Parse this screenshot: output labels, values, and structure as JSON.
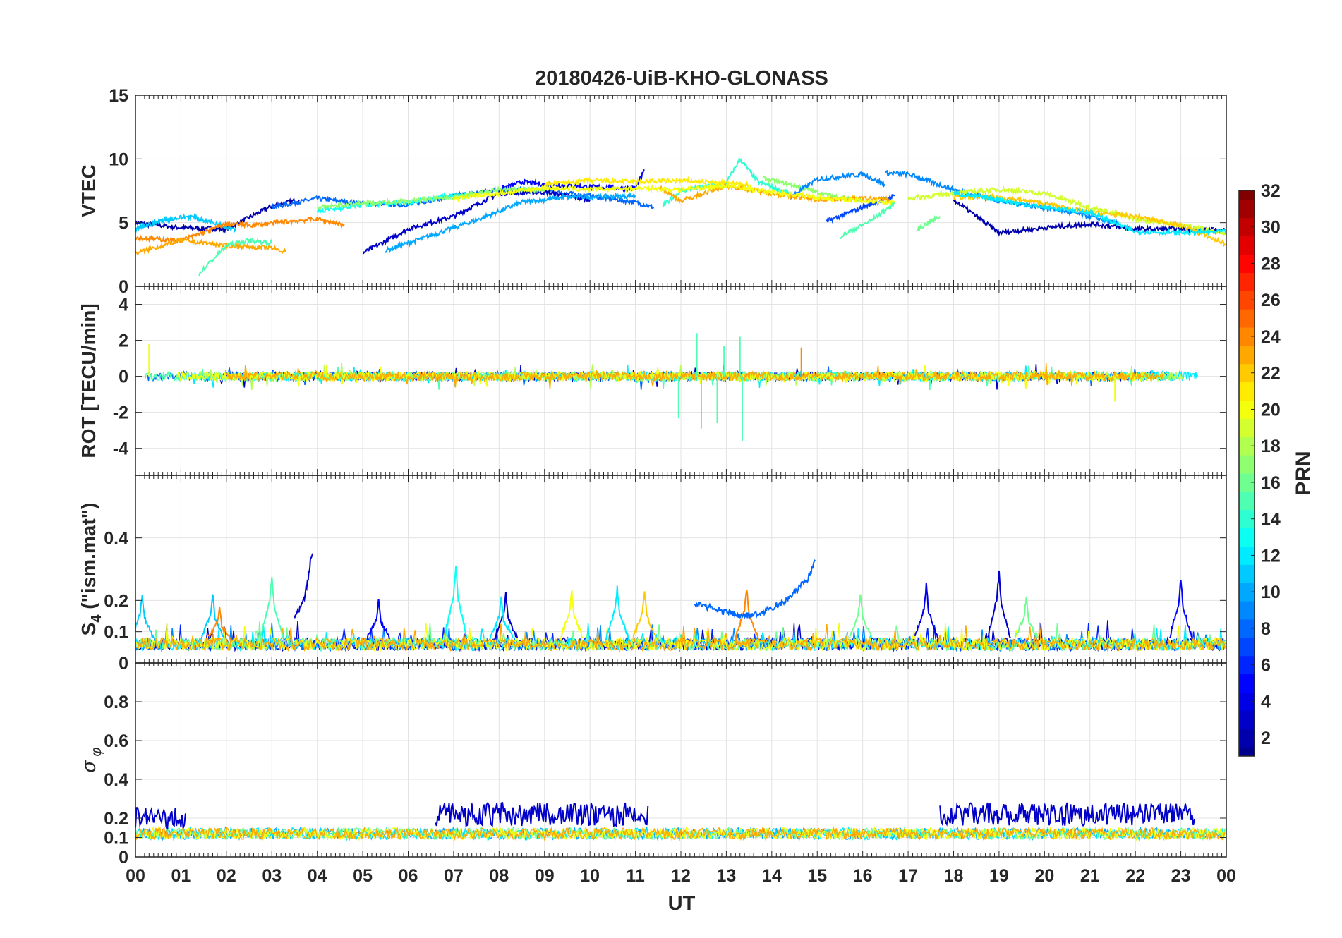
{
  "chart_data": {
    "type": "line",
    "title": "20180426-UiB-KHO-GLONASS",
    "xlabel": "UT",
    "xlim": [
      0,
      24
    ],
    "x_ticks": [
      "00",
      "01",
      "02",
      "03",
      "04",
      "05",
      "06",
      "07",
      "08",
      "09",
      "10",
      "11",
      "12",
      "13",
      "14",
      "15",
      "16",
      "17",
      "18",
      "19",
      "20",
      "21",
      "22",
      "23",
      "00"
    ],
    "grid": true,
    "colorbar": {
      "label": "PRN",
      "range": [
        1,
        32
      ],
      "ticks": [
        "2",
        "4",
        "6",
        "8",
        "10",
        "12",
        "14",
        "16",
        "18",
        "20",
        "22",
        "24",
        "26",
        "28",
        "30",
        "32"
      ],
      "colormap": [
        "#00008f",
        "#0000ff",
        "#0080ff",
        "#00ffff",
        "#80ff80",
        "#ffff00",
        "#ff8000",
        "#ff0000",
        "#800000"
      ]
    },
    "panels": [
      {
        "id": "vtec",
        "ylabel": "VTEC",
        "ylim": [
          0,
          15
        ],
        "y_ticks": [
          "0",
          "5",
          "10",
          "15"
        ],
        "series": [
          {
            "prn": 2,
            "x": [
              0,
              1,
              2,
              3,
              3.6
            ],
            "y": [
              5.0,
              4.6,
              4.5,
              6.3,
              6.8
            ]
          },
          {
            "prn": 8,
            "x": [
              3,
              4,
              5,
              6,
              7,
              8,
              9,
              10,
              11,
              11.4
            ],
            "y": [
              6.2,
              6.9,
              6.5,
              6.4,
              7.1,
              7.6,
              7.5,
              7.1,
              6.6,
              6.2
            ]
          },
          {
            "prn": 3,
            "x": [
              5,
              6,
              7,
              8,
              9,
              10
            ],
            "y": [
              2.6,
              4.5,
              5.5,
              7.3,
              7.4,
              6.8
            ]
          },
          {
            "prn": 10,
            "x": [
              5.5,
              6.5,
              7.5,
              8.5,
              9.5,
              11
            ],
            "y": [
              2.8,
              4.0,
              5.2,
              6.6,
              7.0,
              7.1
            ]
          },
          {
            "prn": 5,
            "x": [
              8,
              8.5,
              9,
              10,
              11,
              11.2
            ],
            "y": [
              7.6,
              8.2,
              8.0,
              7.8,
              7.7,
              9.1
            ]
          },
          {
            "prn": 14,
            "x": [
              11.6,
              12,
              13,
              13.3,
              13.7,
              14.4
            ],
            "y": [
              6.3,
              7.5,
              8.1,
              10.0,
              8.2,
              7.3
            ]
          },
          {
            "prn": 17,
            "x": [
              13.8,
              14.5,
              15.2,
              16
            ],
            "y": [
              8.5,
              7.9,
              7.2,
              6.7
            ]
          },
          {
            "prn": 7,
            "x": [
              15.2,
              16,
              16.7
            ],
            "y": [
              5.1,
              6.2,
              7.1
            ]
          },
          {
            "prn": 9,
            "x": [
              14.4,
              15,
              16,
              16.5
            ],
            "y": [
              7.0,
              8.4,
              8.8,
              8.0
            ]
          },
          {
            "prn": 9,
            "x": [
              16.5,
              17,
              18,
              19,
              20,
              21,
              21.6
            ],
            "y": [
              8.9,
              8.8,
              7.6,
              6.7,
              6.2,
              5.5,
              4.9
            ]
          },
          {
            "prn": 2,
            "x": [
              18,
              19,
              20,
              21,
              22,
              23,
              24
            ],
            "y": [
              6.8,
              4.2,
              4.6,
              4.9,
              4.5,
              4.5,
              4.4
            ]
          },
          {
            "prn": 15,
            "x": [
              15.5,
              16.2,
              16.7
            ],
            "y": [
              3.9,
              5.2,
              6.5
            ]
          },
          {
            "prn": 16,
            "x": [
              17.2,
              17.7
            ],
            "y": [
              4.5,
              5.5
            ]
          },
          {
            "prn": 19,
            "x": [
              17,
              18,
              19,
              20,
              21,
              22,
              23,
              24
            ],
            "y": [
              6.9,
              7.3,
              7.6,
              7.3,
              6.2,
              5.3,
              4.8,
              4.2
            ]
          },
          {
            "prn": 22,
            "x": [
              18,
              19,
              20,
              21,
              22,
              23,
              24
            ],
            "y": [
              7.0,
              7.0,
              6.5,
              5.8,
              5.5,
              4.8,
              3.3
            ]
          },
          {
            "prn": 12,
            "x": [
              18,
              19,
              20,
              21,
              22,
              23,
              24
            ],
            "y": [
              7.3,
              6.8,
              6.2,
              5.8,
              4.3,
              4.2,
              4.3
            ]
          },
          {
            "prn": 11,
            "x": [
              0,
              0.6,
              1.2,
              1.7,
              2.2
            ],
            "y": [
              4.5,
              5.2,
              5.5,
              5.0,
              4.5
            ]
          },
          {
            "prn": 24,
            "x": [
              0,
              1,
              2,
              2.6,
              3.4,
              4,
              4.6
            ],
            "y": [
              3.8,
              3.6,
              4.9,
              4.8,
              5.1,
              5.3,
              4.8
            ]
          },
          {
            "prn": 23,
            "x": [
              0,
              1,
              2,
              3,
              3.3
            ],
            "y": [
              2.6,
              3.6,
              3.2,
              3.0,
              2.7
            ]
          },
          {
            "prn": 15,
            "x": [
              1.4,
              2,
              2.5,
              3
            ],
            "y": [
              1.0,
              3.2,
              3.6,
              3.4
            ]
          },
          {
            "prn": 13,
            "x": [
              4,
              5,
              6,
              7,
              7.5
            ],
            "y": [
              5.9,
              6.4,
              6.6,
              7.2,
              7.1
            ]
          },
          {
            "prn": 17,
            "x": [
              4,
              5,
              6,
              7,
              8,
              9
            ],
            "y": [
              6.2,
              6.5,
              6.7,
              7.0,
              7.6,
              7.6
            ]
          },
          {
            "prn": 21,
            "x": [
              9,
              10,
              11,
              12,
              13,
              13.5
            ],
            "y": [
              8.0,
              8.3,
              8.2,
              8.3,
              8.1,
              8.0
            ]
          },
          {
            "prn": 23,
            "x": [
              11.5,
              12,
              13,
              14,
              15,
              16,
              16.6
            ],
            "y": [
              7.8,
              6.7,
              7.9,
              7.3,
              6.8,
              6.9,
              6.8
            ]
          },
          {
            "prn": 20,
            "x": [
              7,
              8,
              9,
              10,
              11,
              12,
              13,
              14,
              15,
              16,
              16.7
            ],
            "y": [
              6.9,
              7.3,
              7.7,
              7.6,
              7.7,
              7.6,
              7.9,
              7.4,
              7.0,
              6.7,
              6.6
            ]
          }
        ]
      },
      {
        "id": "rot",
        "ylabel": "ROT [TECU/min]",
        "ylim": [
          -5.5,
          5
        ],
        "y_ticks": [
          "-4",
          "-2",
          "0",
          "2",
          "4"
        ],
        "spikes": [
          {
            "prn": 15,
            "x": 11.95,
            "y": -2.3
          },
          {
            "prn": 15,
            "x": 12.35,
            "y": 2.4
          },
          {
            "prn": 15,
            "x": 12.45,
            "y": -2.9
          },
          {
            "prn": 15,
            "x": 12.8,
            "y": -2.6
          },
          {
            "prn": 15,
            "x": 12.95,
            "y": 1.7
          },
          {
            "prn": 15,
            "x": 13.3,
            "y": 2.2
          },
          {
            "prn": 15,
            "x": 13.35,
            "y": -3.6
          },
          {
            "prn": 24,
            "x": 14.65,
            "y": 1.6
          },
          {
            "prn": 20,
            "x": 0.3,
            "y": 1.8
          },
          {
            "prn": 20,
            "x": 21.55,
            "y": -1.4
          }
        ]
      },
      {
        "id": "s4",
        "ylabel": "S4 (\"ism.mat\")",
        "ylabel_main": "S",
        "ylabel_sub": "4",
        "ylabel_rest": " (\"ism.mat\")",
        "ylim": [
          0,
          0.6
        ],
        "y_ticks": [
          "0",
          "0.1",
          "0.2",
          "0.4"
        ],
        "series": [
          {
            "prn": 3,
            "x": [
              3.5,
              3.7,
              3.8,
              3.85,
              3.9
            ],
            "y": [
              0.14,
              0.2,
              0.27,
              0.33,
              0.35
            ]
          },
          {
            "prn": 8,
            "x": [
              12.3,
              12.8,
              13.3,
              13.8,
              14.3,
              14.8,
              14.95
            ],
            "y": [
              0.19,
              0.17,
              0.15,
              0.16,
              0.2,
              0.27,
              0.33
            ]
          }
        ],
        "peaks": [
          {
            "prn": 15,
            "x": 3.0,
            "y": 0.28
          },
          {
            "prn": 13,
            "x": 7.05,
            "y": 0.31
          },
          {
            "prn": 3,
            "x": 8.15,
            "y": 0.22
          },
          {
            "prn": 12,
            "x": 8.05,
            "y": 0.21
          },
          {
            "prn": 20,
            "x": 9.6,
            "y": 0.23
          },
          {
            "prn": 22,
            "x": 11.2,
            "y": 0.23
          },
          {
            "prn": 24,
            "x": 13.45,
            "y": 0.24
          },
          {
            "prn": 16,
            "x": 15.95,
            "y": 0.22
          },
          {
            "prn": 4,
            "x": 17.4,
            "y": 0.25
          },
          {
            "prn": 3,
            "x": 19.0,
            "y": 0.29
          },
          {
            "prn": 16,
            "x": 19.6,
            "y": 0.21
          },
          {
            "prn": 5,
            "x": 23.0,
            "y": 0.27
          },
          {
            "prn": 11,
            "x": 0.15,
            "y": 0.22
          },
          {
            "prn": 11,
            "x": 1.7,
            "y": 0.22
          },
          {
            "prn": 24,
            "x": 1.85,
            "y": 0.18
          },
          {
            "prn": 5,
            "x": 5.35,
            "y": 0.2
          },
          {
            "prn": 12,
            "x": 10.6,
            "y": 0.24
          }
        ],
        "baseline": 0.06
      },
      {
        "id": "sigma_phi",
        "ylabel": "σ φ",
        "ylabel_main": "σ",
        "ylabel_sub": "φ",
        "ylim": [
          0,
          1
        ],
        "y_ticks": [
          "0",
          "0.1",
          "0.2",
          "0.4",
          "0.6",
          "0.8"
        ],
        "elevated_intervals": [
          {
            "prn": 3,
            "x": [
              0,
              1.1
            ],
            "y": 0.2
          },
          {
            "prn": 3,
            "x": [
              6.6,
              11.3
            ],
            "y": 0.22
          },
          {
            "prn": 3,
            "x": [
              17.7,
              23.3
            ],
            "y": 0.22
          }
        ],
        "baseline": 0.12
      }
    ]
  }
}
